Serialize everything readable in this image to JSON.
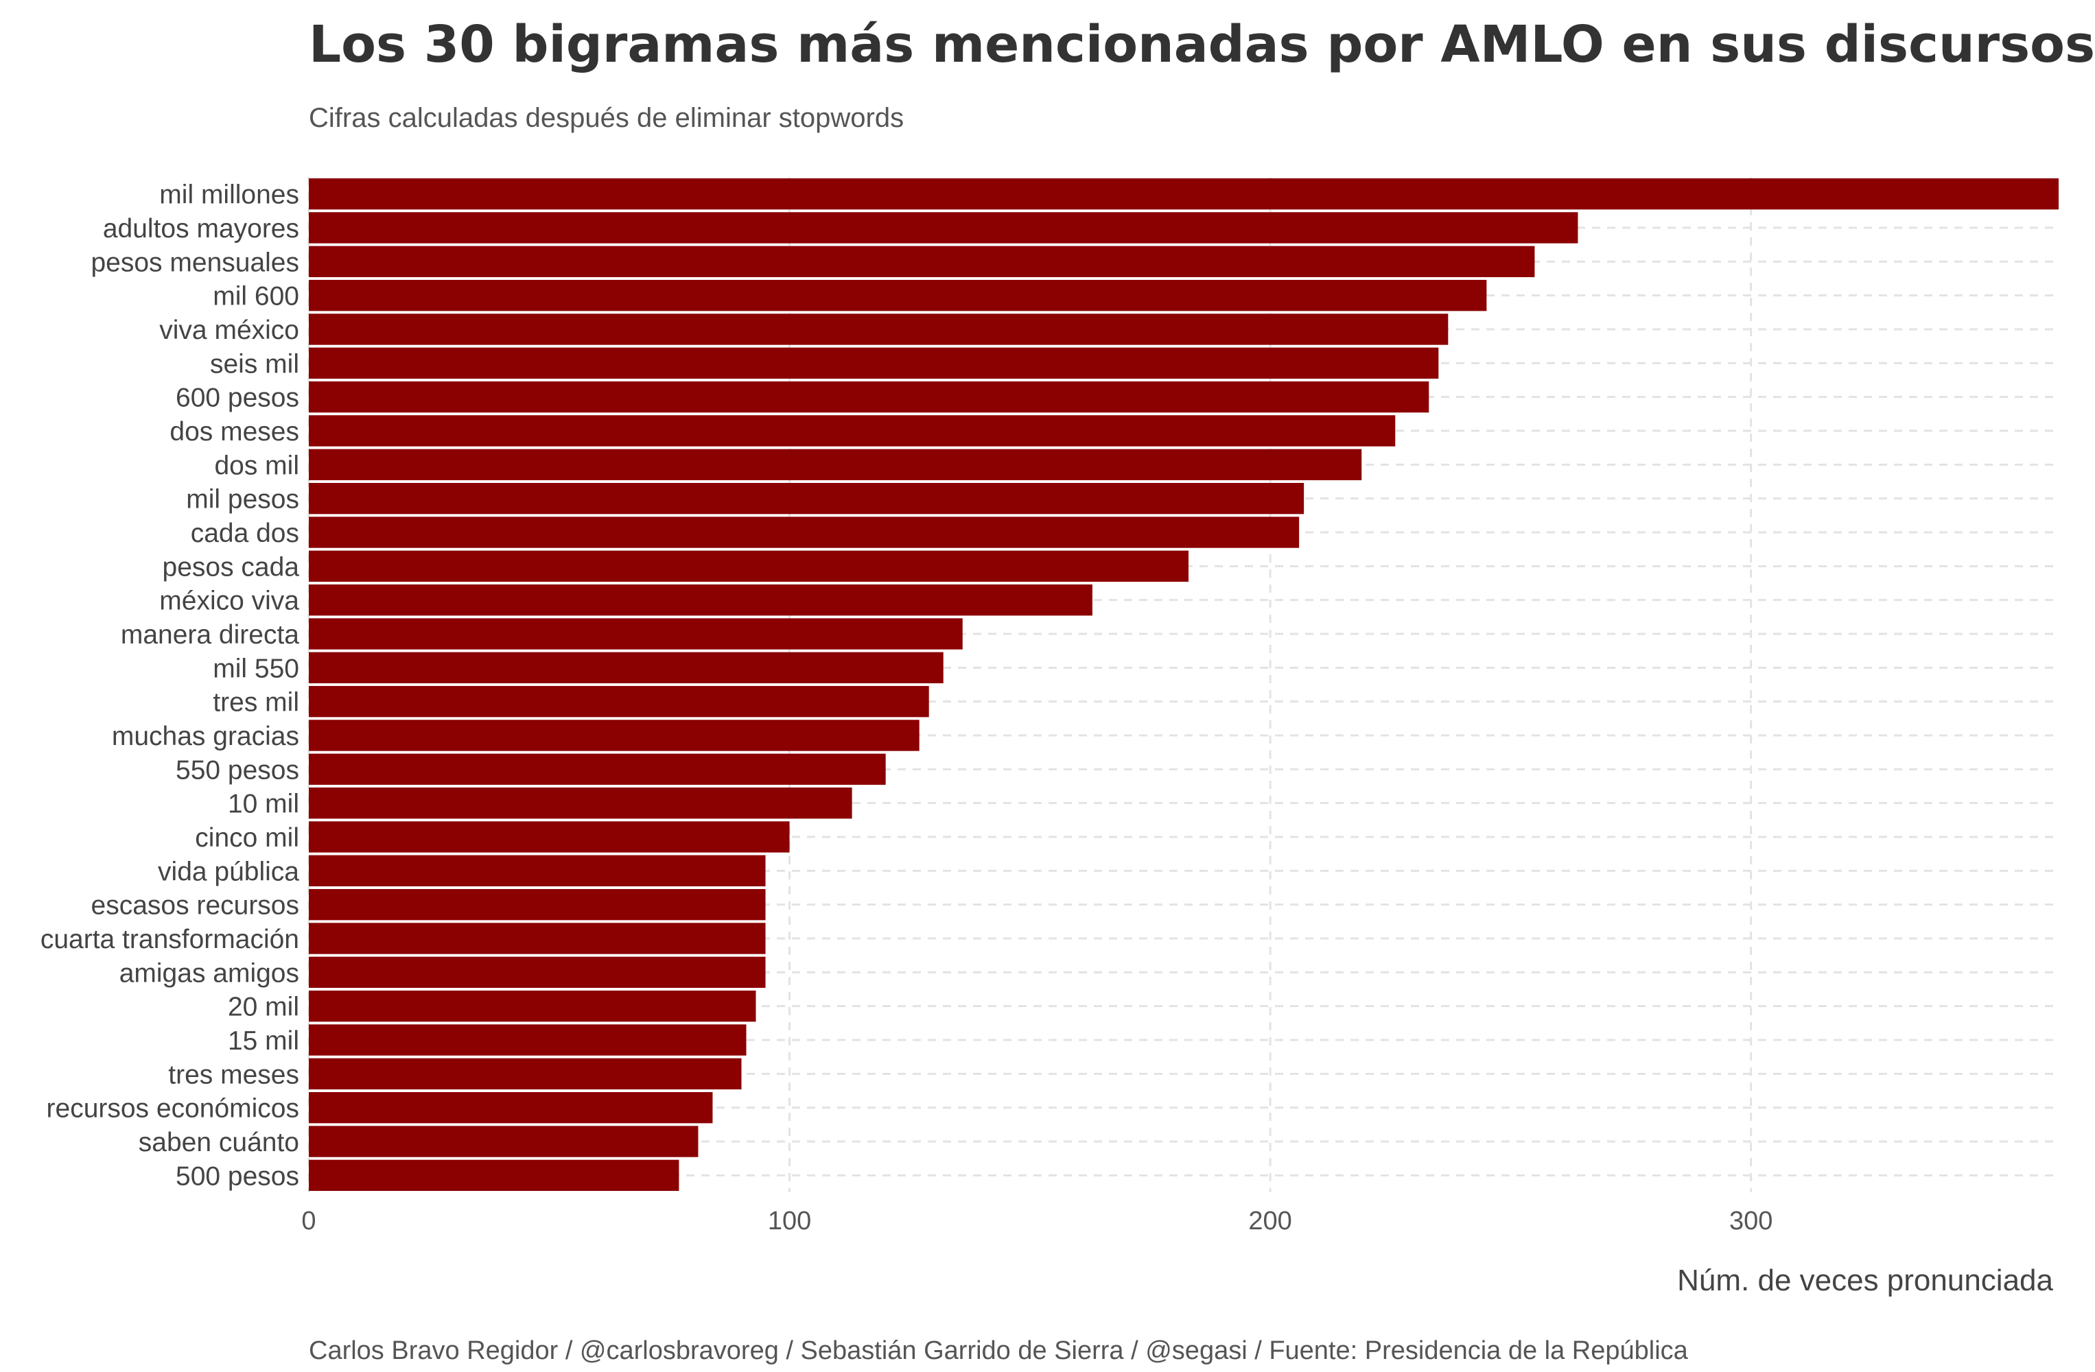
{
  "chart_data": {
    "type": "bar",
    "orientation": "horizontal",
    "title": "Los 30 bigramas más mencionadas por AMLO en sus discursos",
    "subtitle": "Cifras calculadas después de eliminar stopwords",
    "xlabel": "Núm. de veces pronunciada",
    "ylabel": "",
    "caption": "Carlos Bravo Regidor / @carlosbravoreg / Sebastián Garrido de Sierra / @segasi / Fuente: Presidencia de la República",
    "xlim": [
      0,
      364
    ],
    "xticks": [
      0,
      100,
      200,
      300
    ],
    "grid": true,
    "legend": "none",
    "bar_color": "#8B0000",
    "categories": [
      "mil millones",
      "adultos mayores",
      "pesos mensuales",
      "mil 600",
      "viva méxico",
      "seis mil",
      "600 pesos",
      "dos meses",
      "dos mil",
      "mil pesos",
      "cada dos",
      "pesos cada",
      "méxico viva",
      "manera directa",
      "mil 550",
      "tres mil",
      "muchas gracias",
      "550 pesos",
      "10 mil",
      "cinco mil",
      "vida pública",
      "escasos recursos",
      "cuarta transformación",
      "amigas amigos",
      "20 mil",
      "15 mil",
      "tres meses",
      "recursos económicos",
      "saben cuánto",
      "500 pesos"
    ],
    "values": [
      364,
      264,
      255,
      245,
      237,
      235,
      233,
      226,
      219,
      207,
      206,
      183,
      163,
      136,
      132,
      129,
      127,
      120,
      113,
      100,
      95,
      95,
      95,
      95,
      93,
      91,
      90,
      84,
      81,
      77
    ]
  }
}
